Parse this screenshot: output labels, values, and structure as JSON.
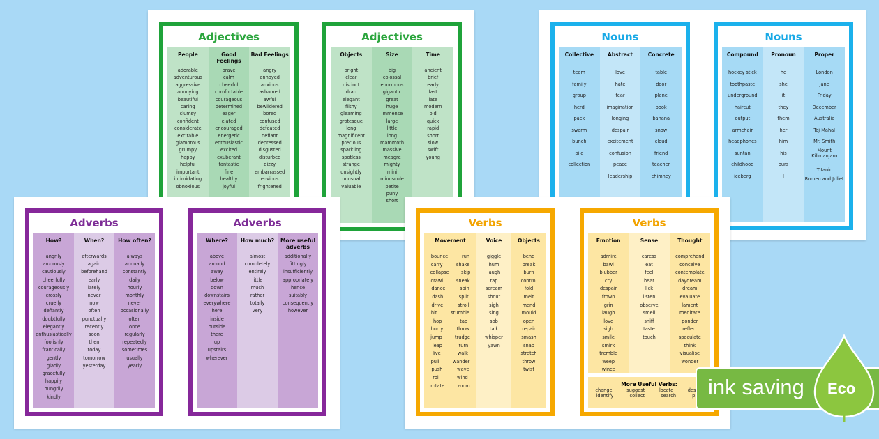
{
  "colors": {
    "green": "#1fa33a",
    "blue": "#1bb1ec",
    "purple": "#86289a",
    "orange": "#f6a800",
    "eco": "#77b943"
  },
  "cards": [
    {
      "title": "Adjectives",
      "theme": "green",
      "columns": [
        {
          "header": "People",
          "words": [
            "adorable",
            "adventurous",
            "aggressive",
            "annoying",
            "beautiful",
            "caring",
            "clumsy",
            "confident",
            "considerate",
            "excitable",
            "glamorous",
            "grumpy",
            "happy",
            "helpful",
            "important",
            "intimidating",
            "obnoxious"
          ]
        },
        {
          "header": "Good Feelings",
          "words": [
            "brave",
            "calm",
            "cheerful",
            "comfortable",
            "courageous",
            "determined",
            "eager",
            "elated",
            "encouraged",
            "energetic",
            "enthusiastic",
            "excited",
            "exuberant",
            "fantastic",
            "fine",
            "healthy",
            "joyful"
          ]
        },
        {
          "header": "Bad Feelings",
          "words": [
            "angry",
            "annoyed",
            "anxious",
            "ashamed",
            "awful",
            "bewildered",
            "bored",
            "confused",
            "defeated",
            "defiant",
            "depressed",
            "disgusted",
            "disturbed",
            "dizzy",
            "embarrassed",
            "envious",
            "frightened"
          ]
        }
      ]
    },
    {
      "title": "Adjectives",
      "theme": "green",
      "columns": [
        {
          "header": "Objects",
          "words": [
            "bright",
            "clear",
            "distinct",
            "drab",
            "elegant",
            "filthy",
            "gleaming",
            "grotesque",
            "long",
            "magnificent",
            "precious",
            "sparkling",
            "spotless",
            "strange",
            "unsightly",
            "unusual",
            "valuable"
          ]
        },
        {
          "header": "Size",
          "words": [
            "big",
            "colossal",
            "enormous",
            "gigantic",
            "great",
            "huge",
            "immense",
            "large",
            "little",
            "long",
            "mammoth",
            "massive",
            "meagre",
            "mighty",
            "mini",
            "minuscule",
            "petite",
            "puny",
            "short"
          ]
        },
        {
          "header": "Time",
          "words": [
            "ancient",
            "brief",
            "early",
            "fast",
            "late",
            "modern",
            "old",
            "quick",
            "rapid",
            "short",
            "slow",
            "swift",
            "young"
          ]
        }
      ]
    },
    {
      "title": "Nouns",
      "theme": "blue",
      "columns": [
        {
          "header": "Collective",
          "words": [
            "team",
            "family",
            "group",
            "herd",
            "pack",
            "swarm",
            "bunch",
            "pile",
            "collection"
          ]
        },
        {
          "header": "Abstract",
          "words": [
            "love",
            "hate",
            "fear",
            "imagination",
            "longing",
            "despair",
            "excitement",
            "confusion",
            "peace",
            "leadership"
          ]
        },
        {
          "header": "Concrete",
          "words": [
            "table",
            "door",
            "plane",
            "book",
            "banana",
            "snow",
            "cloud",
            "friend",
            "teacher",
            "chimney"
          ]
        }
      ]
    },
    {
      "title": "Nouns",
      "theme": "blue",
      "columns": [
        {
          "header": "Compound",
          "words": [
            "hockey stick",
            "toothpaste",
            "underground",
            "haircut",
            "output",
            "armchair",
            "headphones",
            "suntan",
            "childhood",
            "iceberg"
          ]
        },
        {
          "header": "Pronoun",
          "words": [
            "he",
            "she",
            "it",
            "they",
            "them",
            "her",
            "him",
            "his",
            "ours",
            "I"
          ]
        },
        {
          "header": "Proper",
          "words": [
            "London",
            "Jane",
            "Friday",
            "December",
            "Australia",
            "Taj Mahal",
            "Mr. Smith",
            "Mount Kilimanjaro",
            "Titanic",
            "Romeo and Juliet"
          ]
        }
      ]
    },
    {
      "title": "Adverbs",
      "theme": "purple",
      "columns": [
        {
          "header": "How?",
          "words": [
            "angrily",
            "anxiously",
            "cautiously",
            "cheerfully",
            "courageously",
            "crossly",
            "cruelly",
            "defiantly",
            "doubtfully",
            "elegantly",
            "enthusiastically",
            "foolishly",
            "frantically",
            "gently",
            "gladly",
            "gracefully",
            "happily",
            "hungrily",
            "kindly"
          ]
        },
        {
          "header": "When?",
          "words": [
            "afterwards",
            "again",
            "beforehand",
            "early",
            "lately",
            "never",
            "now",
            "often",
            "punctually",
            "recently",
            "soon",
            "then",
            "today",
            "tomorrow",
            "yesterday"
          ]
        },
        {
          "header": "How often?",
          "words": [
            "always",
            "annually",
            "constantly",
            "daily",
            "hourly",
            "monthly",
            "never",
            "occasionally",
            "often",
            "once",
            "regularly",
            "repeatedly",
            "sometimes",
            "usually",
            "yearly"
          ]
        }
      ]
    },
    {
      "title": "Adverbs",
      "theme": "purple",
      "columns": [
        {
          "header": "Where?",
          "words": [
            "above",
            "around",
            "away",
            "below",
            "down",
            "downstairs",
            "everywhere",
            "here",
            "inside",
            "outside",
            "there",
            "up",
            "upstairs",
            "wherever"
          ]
        },
        {
          "header": "How much?",
          "words": [
            "almost",
            "completely",
            "entirely",
            "little",
            "much",
            "rather",
            "totally",
            "very"
          ]
        },
        {
          "header": "More useful adverbs",
          "words": [
            "additionally",
            "fittingly",
            "insufficiently",
            "appropriately",
            "hence",
            "suitably",
            "consequently",
            "however"
          ]
        }
      ]
    },
    {
      "title": "Verbs",
      "theme": "orange",
      "columns": [
        {
          "header": "Movement",
          "pairs": [
            [
              "bounce",
              "run"
            ],
            [
              "carry",
              "shake"
            ],
            [
              "collapse",
              "skip"
            ],
            [
              "crawl",
              "sneak"
            ],
            [
              "dance",
              "spin"
            ],
            [
              "dash",
              "split"
            ],
            [
              "drive",
              "stroll"
            ],
            [
              "hit",
              "stumble"
            ],
            [
              "hop",
              "tap"
            ],
            [
              "hurry",
              "throw"
            ],
            [
              "jump",
              "trudge"
            ],
            [
              "leap",
              "turn"
            ],
            [
              "live",
              "walk"
            ],
            [
              "pull",
              "wander"
            ],
            [
              "push",
              "wave"
            ],
            [
              "roll",
              "wind"
            ],
            [
              "rotate",
              "zoom"
            ]
          ]
        },
        {
          "header": "Voice",
          "words": [
            "giggle",
            "hum",
            "laugh",
            "rap",
            "scream",
            "shout",
            "sigh",
            "sing",
            "sob",
            "talk",
            "whisper",
            "yawn"
          ]
        },
        {
          "header": "Objects",
          "words": [
            "bend",
            "break",
            "burn",
            "control",
            "fold",
            "melt",
            "mend",
            "mould",
            "open",
            "repair",
            "smash",
            "snap",
            "stretch",
            "throw",
            "twist"
          ]
        }
      ]
    },
    {
      "title": "Verbs",
      "theme": "orange",
      "columns": [
        {
          "header": "Emotion",
          "words": [
            "admire",
            "bawl",
            "blubber",
            "cry",
            "despair",
            "frown",
            "grin",
            "laugh",
            "love",
            "sigh",
            "smile",
            "smirk",
            "tremble",
            "weep",
            "wince"
          ]
        },
        {
          "header": "Sense",
          "words": [
            "caress",
            "eat",
            "feel",
            "hear",
            "lick",
            "listen",
            "observe",
            "smell",
            "sniff",
            "taste",
            "touch"
          ]
        },
        {
          "header": "Thought",
          "words": [
            "comprehend",
            "conceive",
            "contemplate",
            "daydream",
            "dream",
            "evaluate",
            "lament",
            "meditate",
            "ponder",
            "reflect",
            "speculate",
            "think",
            "visualise",
            "wonder"
          ]
        }
      ],
      "extra": {
        "header": "More Useful Verbs:",
        "row1": [
          "change",
          "suggest",
          "locate",
          "design"
        ],
        "row2": [
          "identify",
          "collect",
          "search",
          "plan"
        ]
      }
    }
  ],
  "eco": {
    "banner": "ink saving",
    "badge": "Eco",
    "leaf_icon": "leaf-icon"
  }
}
